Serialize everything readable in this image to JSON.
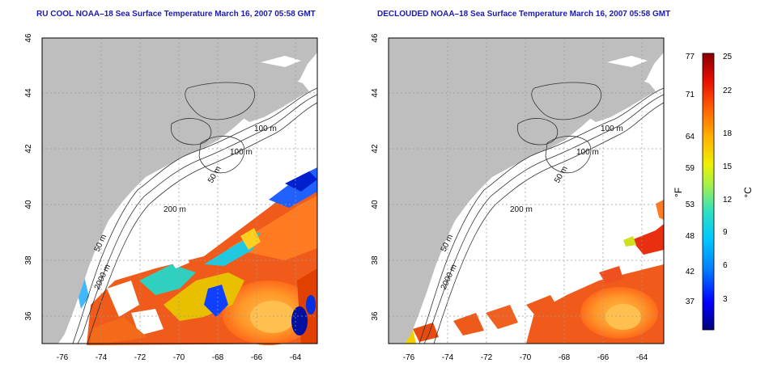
{
  "left_panel": {
    "title": "RU COOL NOAA–18 Sea Surface Temperature March 16, 2007 05:58 GMT",
    "lat_ticks": [
      "46",
      "44",
      "42",
      "40",
      "38",
      "36"
    ],
    "lon_ticks": [
      "-76",
      "-74",
      "-72",
      "-70",
      "-68",
      "-66",
      "-64"
    ],
    "contour_labels": [
      "100 m",
      "100 m",
      "50 m",
      "200 m",
      "50 m",
      "2000 m"
    ]
  },
  "right_panel": {
    "title": "DECLOUDED NOAA–18 Sea Surface Temperature March 16, 2007 05:58 GMT",
    "lat_ticks": [
      "46",
      "44",
      "42",
      "40",
      "38",
      "36"
    ],
    "lon_ticks": [
      "-76",
      "-74",
      "-72",
      "-70",
      "-68",
      "-66",
      "-64"
    ],
    "contour_labels": [
      "100 m",
      "100 m",
      "50 m",
      "200 m",
      "50 m",
      "2000 m"
    ]
  },
  "colorbar": {
    "f_label": "°F",
    "c_label": "°C",
    "f_ticks": [
      "77",
      "71",
      "64",
      "59",
      "53",
      "48",
      "42",
      "37"
    ],
    "c_ticks": [
      "25",
      "22",
      "18",
      "15",
      "12",
      "9",
      "6",
      "3"
    ],
    "colors": [
      "#00007a",
      "#0000ff",
      "#0080ff",
      "#00c8ff",
      "#30e0c0",
      "#a0f050",
      "#f0f000",
      "#ffb000",
      "#ff6000",
      "#e81000",
      "#8b0000"
    ]
  },
  "colors": {
    "land": "#bebebe",
    "title": "#1a1ab0",
    "grid": "#9a9a9a"
  }
}
